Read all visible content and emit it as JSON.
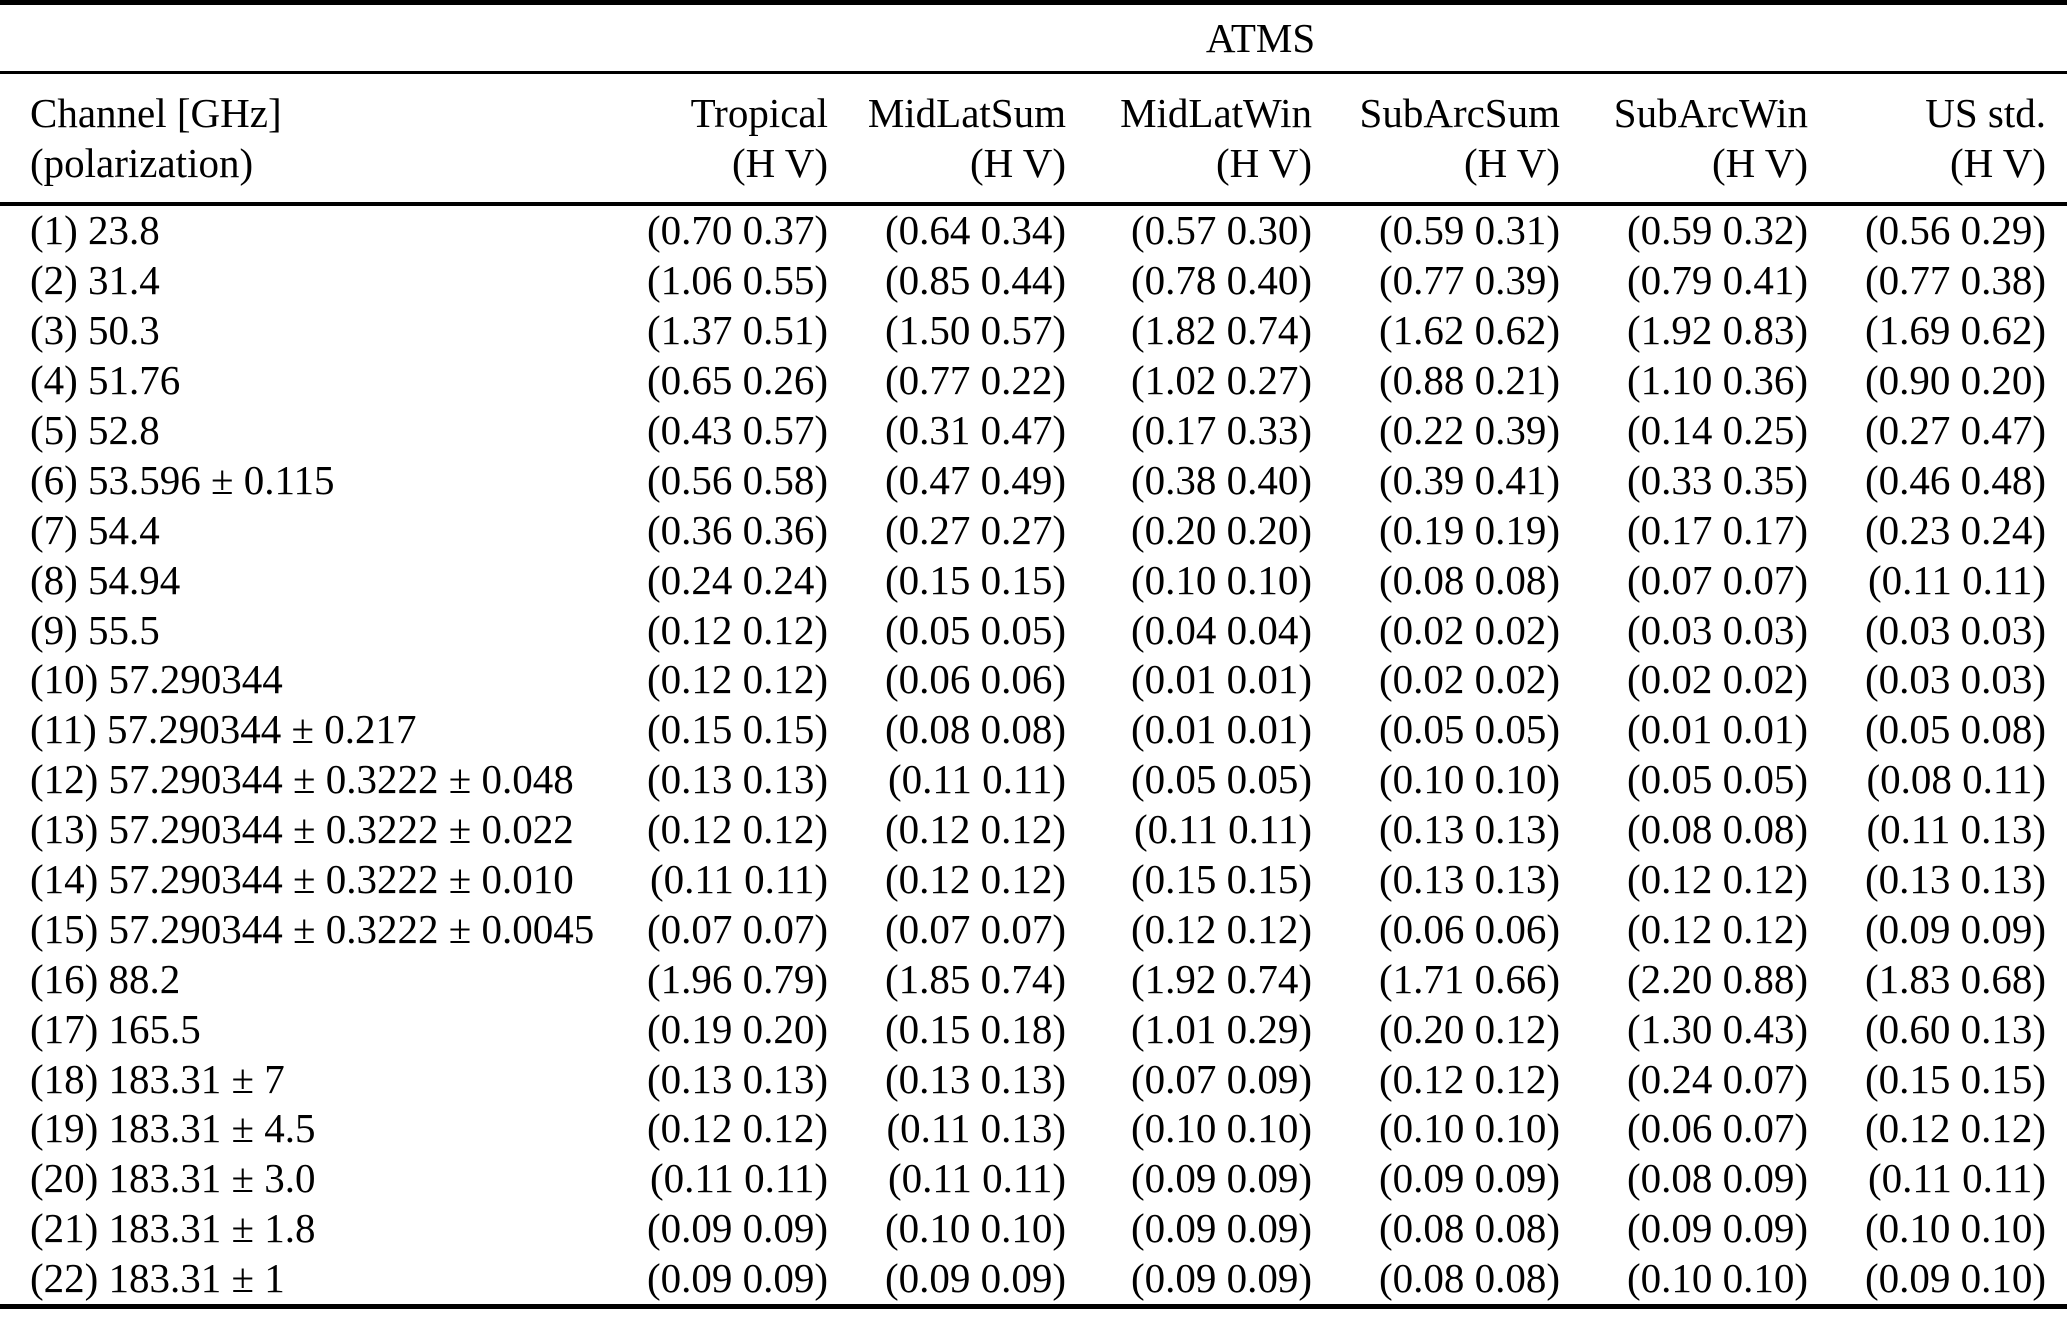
{
  "title": "ATMS",
  "table": {
    "channel_header": {
      "line1": "Channel [GHz]",
      "line2": "(polarization)"
    },
    "columns": [
      {
        "label": "Tropical",
        "sub": "(H V)"
      },
      {
        "label": "MidLatSum",
        "sub": "(H V)"
      },
      {
        "label": "MidLatWin",
        "sub": "(H V)"
      },
      {
        "label": "SubArcSum",
        "sub": "(H V)"
      },
      {
        "label": "SubArcWin",
        "sub": "(H V)"
      },
      {
        "label": "US std.",
        "sub": "(H V)"
      }
    ],
    "rows": [
      {
        "channel": "(1) 23.8",
        "values": [
          "(0.70 0.37)",
          "(0.64 0.34)",
          "(0.57 0.30)",
          "(0.59 0.31)",
          "(0.59 0.32)",
          "(0.56 0.29)"
        ]
      },
      {
        "channel": "(2) 31.4",
        "values": [
          "(1.06 0.55)",
          "(0.85 0.44)",
          "(0.78 0.40)",
          "(0.77 0.39)",
          "(0.79 0.41)",
          "(0.77 0.38)"
        ]
      },
      {
        "channel": "(3) 50.3",
        "values": [
          "(1.37 0.51)",
          "(1.50 0.57)",
          "(1.82 0.74)",
          "(1.62 0.62)",
          "(1.92 0.83)",
          "(1.69 0.62)"
        ]
      },
      {
        "channel": "(4) 51.76",
        "values": [
          "(0.65 0.26)",
          "(0.77 0.22)",
          "(1.02 0.27)",
          "(0.88 0.21)",
          "(1.10 0.36)",
          "(0.90 0.20)"
        ]
      },
      {
        "channel": "(5) 52.8",
        "values": [
          "(0.43 0.57)",
          "(0.31 0.47)",
          "(0.17 0.33)",
          "(0.22 0.39)",
          "(0.14 0.25)",
          "(0.27 0.47)"
        ]
      },
      {
        "channel": "(6) 53.596 ± 0.115",
        "values": [
          "(0.56 0.58)",
          "(0.47 0.49)",
          "(0.38 0.40)",
          "(0.39 0.41)",
          "(0.33 0.35)",
          "(0.46 0.48)"
        ]
      },
      {
        "channel": "(7) 54.4",
        "values": [
          "(0.36 0.36)",
          "(0.27 0.27)",
          "(0.20 0.20)",
          "(0.19 0.19)",
          "(0.17 0.17)",
          "(0.23 0.24)"
        ]
      },
      {
        "channel": "(8) 54.94",
        "values": [
          "(0.24 0.24)",
          "(0.15 0.15)",
          "(0.10 0.10)",
          "(0.08 0.08)",
          "(0.07 0.07)",
          "(0.11 0.11)"
        ]
      },
      {
        "channel": "(9) 55.5",
        "values": [
          "(0.12 0.12)",
          "(0.05 0.05)",
          "(0.04 0.04)",
          "(0.02 0.02)",
          "(0.03 0.03)",
          "(0.03 0.03)"
        ]
      },
      {
        "channel": "(10) 57.290344",
        "values": [
          "(0.12 0.12)",
          "(0.06 0.06)",
          "(0.01 0.01)",
          "(0.02 0.02)",
          "(0.02 0.02)",
          "(0.03 0.03)"
        ]
      },
      {
        "channel": "(11) 57.290344 ± 0.217",
        "values": [
          "(0.15 0.15)",
          "(0.08 0.08)",
          "(0.01 0.01)",
          "(0.05 0.05)",
          "(0.01 0.01)",
          "(0.05 0.08)"
        ]
      },
      {
        "channel": "(12) 57.290344 ± 0.3222 ± 0.048",
        "values": [
          "(0.13 0.13)",
          "(0.11 0.11)",
          "(0.05 0.05)",
          "(0.10 0.10)",
          "(0.05 0.05)",
          "(0.08 0.11)"
        ]
      },
      {
        "channel": "(13) 57.290344 ± 0.3222 ± 0.022",
        "values": [
          "(0.12 0.12)",
          "(0.12 0.12)",
          "(0.11 0.11)",
          "(0.13 0.13)",
          "(0.08 0.08)",
          "(0.11 0.13)"
        ]
      },
      {
        "channel": "(14) 57.290344 ± 0.3222 ± 0.010",
        "values": [
          "(0.11 0.11)",
          "(0.12 0.12)",
          "(0.15 0.15)",
          "(0.13 0.13)",
          "(0.12 0.12)",
          "(0.13 0.13)"
        ]
      },
      {
        "channel": "(15) 57.290344 ± 0.3222 ± 0.0045",
        "values": [
          "(0.07 0.07)",
          "(0.07 0.07)",
          "(0.12 0.12)",
          "(0.06 0.06)",
          "(0.12 0.12)",
          "(0.09 0.09)"
        ]
      },
      {
        "channel": "(16) 88.2",
        "values": [
          "(1.96 0.79)",
          "(1.85 0.74)",
          "(1.92 0.74)",
          "(1.71 0.66)",
          "(2.20 0.88)",
          "(1.83 0.68)"
        ]
      },
      {
        "channel": "(17) 165.5",
        "values": [
          "(0.19 0.20)",
          "(0.15 0.18)",
          "(1.01 0.29)",
          "(0.20 0.12)",
          "(1.30 0.43)",
          "(0.60 0.13)"
        ]
      },
      {
        "channel": "(18) 183.31 ± 7",
        "values": [
          "(0.13 0.13)",
          "(0.13 0.13)",
          "(0.07 0.09)",
          "(0.12 0.12)",
          "(0.24 0.07)",
          "(0.15 0.15)"
        ]
      },
      {
        "channel": "(19) 183.31 ± 4.5",
        "values": [
          "(0.12 0.12)",
          "(0.11 0.13)",
          "(0.10 0.10)",
          "(0.10 0.10)",
          "(0.06 0.07)",
          "(0.12 0.12)"
        ]
      },
      {
        "channel": "(20) 183.31 ± 3.0",
        "values": [
          "(0.11 0.11)",
          "(0.11 0.11)",
          "(0.09 0.09)",
          "(0.09 0.09)",
          "(0.08 0.09)",
          "(0.11 0.11)"
        ]
      },
      {
        "channel": "(21) 183.31 ± 1.8",
        "values": [
          "(0.09 0.09)",
          "(0.10 0.10)",
          "(0.09 0.09)",
          "(0.08 0.08)",
          "(0.09 0.09)",
          "(0.10 0.10)"
        ]
      },
      {
        "channel": "(22) 183.31 ± 1",
        "values": [
          "(0.09 0.09)",
          "(0.09 0.09)",
          "(0.09 0.09)",
          "(0.08 0.08)",
          "(0.10 0.10)",
          "(0.09 0.10)"
        ]
      }
    ]
  }
}
